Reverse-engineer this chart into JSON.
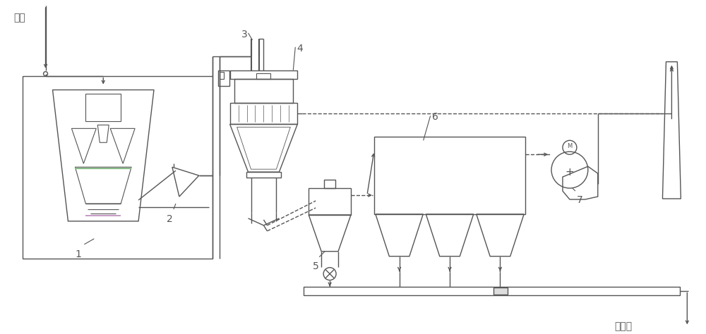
{
  "bg": "#ffffff",
  "lc": "#555555",
  "gc": "#88bb88",
  "pc": "#bb88bb",
  "fig_w": 10.0,
  "fig_h": 4.74,
  "dpi": 100,
  "labels": {
    "input": "入料",
    "output": "成品库",
    "n1": "1",
    "n2": "2",
    "n3": "3",
    "n4": "4",
    "n5": "5",
    "n6": "6",
    "n7": "7"
  }
}
